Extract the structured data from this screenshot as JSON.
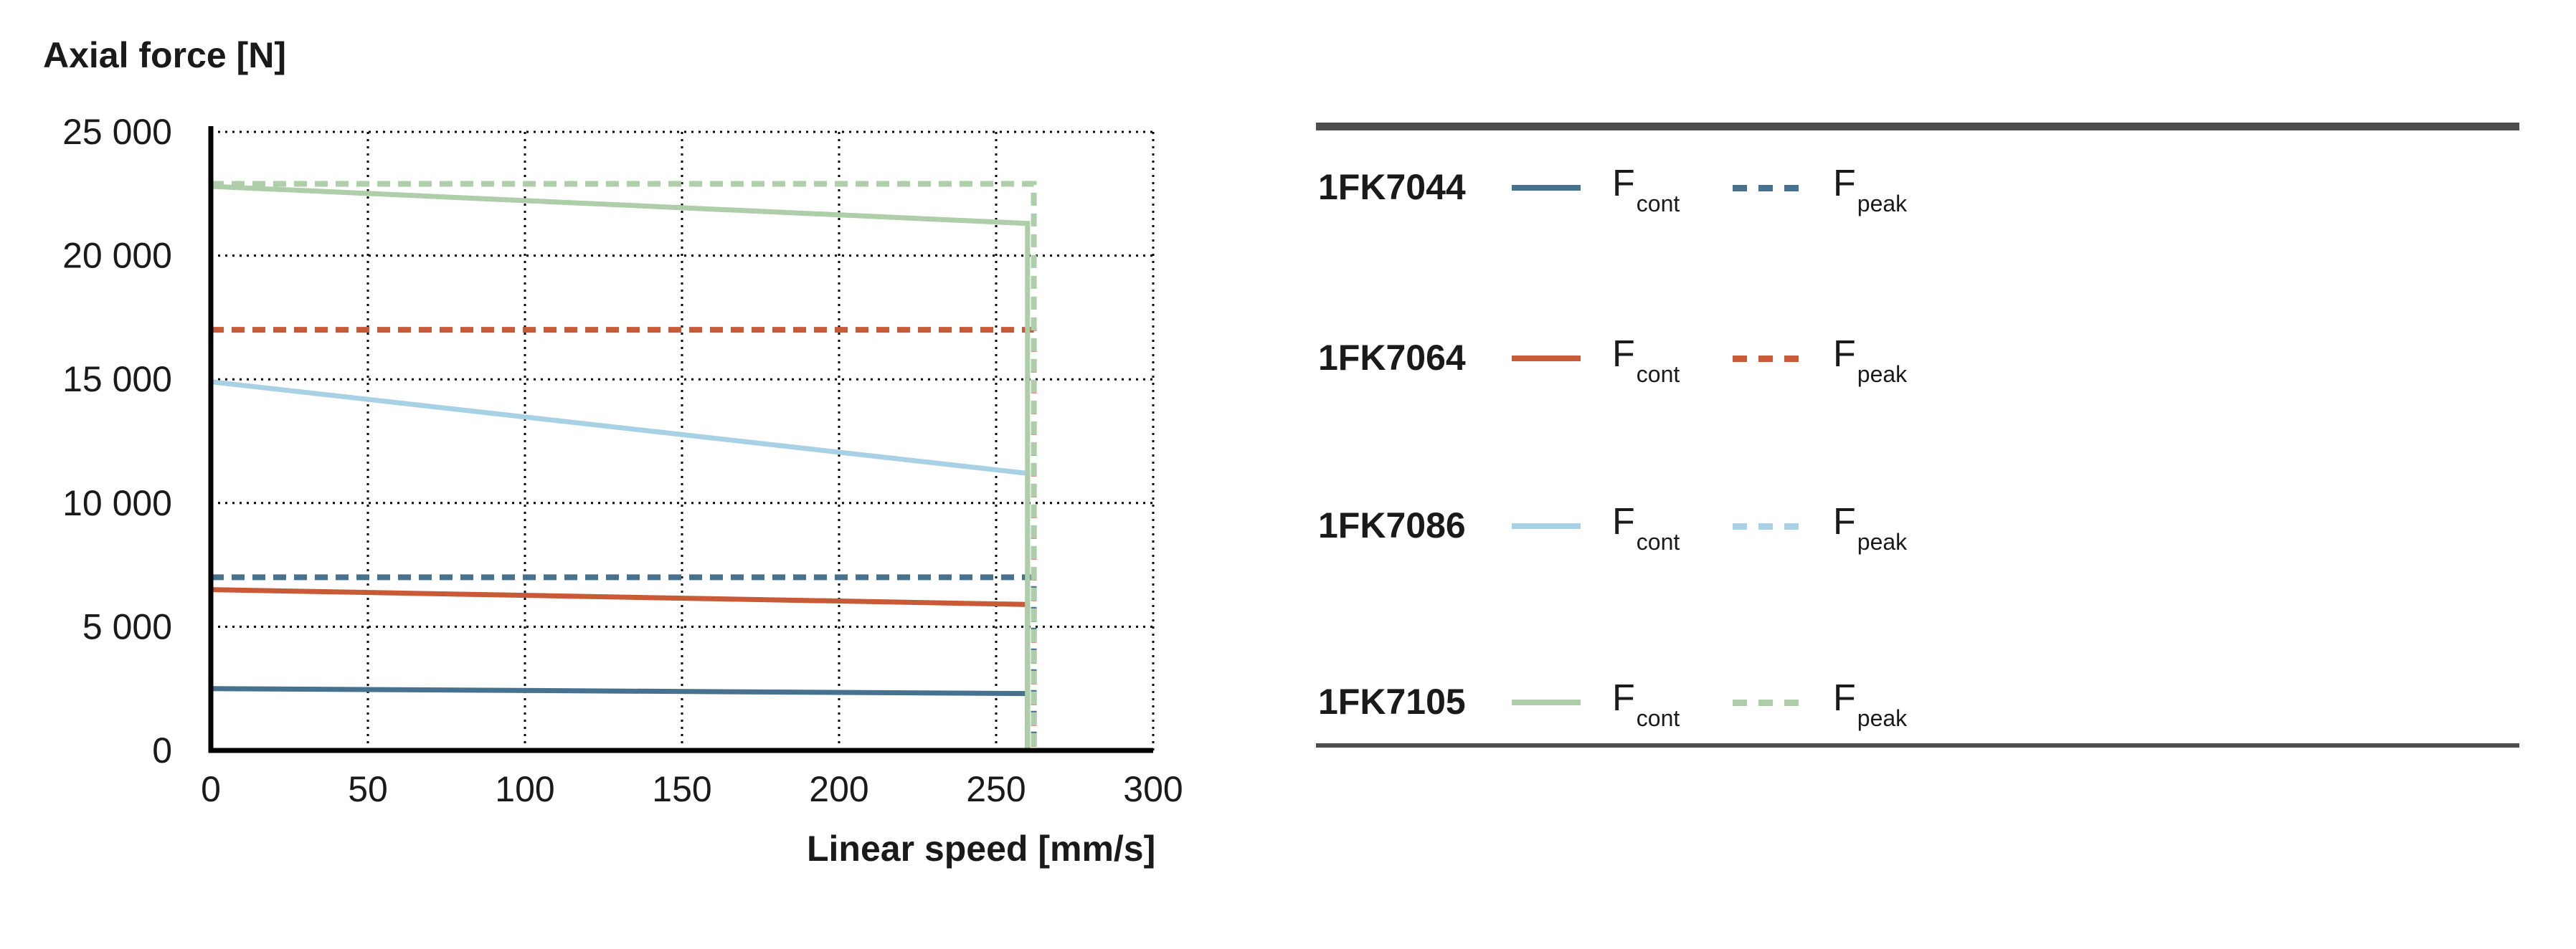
{
  "chart_data": {
    "type": "line",
    "title": "",
    "ylabel": "Axial force [N]",
    "xlabel": "Linear speed [mm/s]",
    "xlim": [
      0,
      300
    ],
    "ylim": [
      0,
      25000
    ],
    "x_ticks": [
      0,
      50,
      100,
      150,
      200,
      250,
      300
    ],
    "y_ticks": [
      0,
      5000,
      10000,
      15000,
      20000,
      25000
    ],
    "x_tick_labels": [
      "0",
      "50",
      "100",
      "150",
      "200",
      "250",
      "300"
    ],
    "y_tick_labels": [
      "0",
      "5 000",
      "10 000",
      "15 000",
      "20 000",
      "25 000"
    ],
    "grid": true,
    "legend_position": "right",
    "series": [
      {
        "name": "1FK7044 Fcont",
        "model": "1FK7044",
        "kind": "cont",
        "style": "solid",
        "color": "#46718F",
        "x": [
          0,
          260,
          260
        ],
        "y": [
          2500,
          2300,
          0
        ]
      },
      {
        "name": "1FK7044 Fpeak",
        "model": "1FK7044",
        "kind": "peak",
        "style": "dashed",
        "color": "#46718F",
        "x": [
          0,
          262,
          262
        ],
        "y": [
          7000,
          7000,
          0
        ]
      },
      {
        "name": "1FK7064 Fcont",
        "model": "1FK7064",
        "kind": "cont",
        "style": "solid",
        "color": "#C85A37",
        "x": [
          0,
          260,
          260
        ],
        "y": [
          6500,
          5900,
          0
        ]
      },
      {
        "name": "1FK7064 Fpeak",
        "model": "1FK7064",
        "kind": "peak",
        "style": "dashed",
        "color": "#C85A37",
        "x": [
          0,
          262,
          262
        ],
        "y": [
          17000,
          17000,
          0
        ]
      },
      {
        "name": "1FK7086 Fcont",
        "model": "1FK7086",
        "kind": "cont",
        "style": "solid",
        "color": "#A9D1E6",
        "x": [
          0,
          260,
          260
        ],
        "y": [
          14900,
          11200,
          0
        ]
      },
      {
        "name": "1FK7086 Fpeak",
        "model": "1FK7086",
        "kind": "peak",
        "style": "dashed",
        "color": "#A9D1E6",
        "x": [
          0,
          262,
          262
        ],
        "y": [
          22900,
          22900,
          0
        ]
      },
      {
        "name": "1FK7105 Fcont",
        "model": "1FK7105",
        "kind": "cont",
        "style": "solid",
        "color": "#AECDA9",
        "x": [
          0,
          260,
          260
        ],
        "y": [
          22800,
          21300,
          0
        ]
      },
      {
        "name": "1FK7105 Fpeak",
        "model": "1FK7105",
        "kind": "peak",
        "style": "dashed",
        "color": "#AECDA9",
        "x": [
          0,
          262,
          262
        ],
        "y": [
          22900,
          22900,
          0
        ]
      }
    ]
  },
  "legend": {
    "items": [
      {
        "model": "1FK7044",
        "color": "#46718F",
        "cont_label": "F",
        "cont_sub": "cont",
        "peak_label": "F",
        "peak_sub": "peak"
      },
      {
        "model": "1FK7064",
        "color": "#C85A37",
        "cont_label": "F",
        "cont_sub": "cont",
        "peak_label": "F",
        "peak_sub": "peak"
      },
      {
        "model": "1FK7086",
        "color": "#A9D1E6",
        "cont_label": "F",
        "cont_sub": "cont",
        "peak_label": "F",
        "peak_sub": "peak"
      },
      {
        "model": "1FK7105",
        "color": "#AECDA9",
        "cont_label": "F",
        "cont_sub": "cont",
        "peak_label": "F",
        "peak_sub": "peak"
      }
    ]
  }
}
